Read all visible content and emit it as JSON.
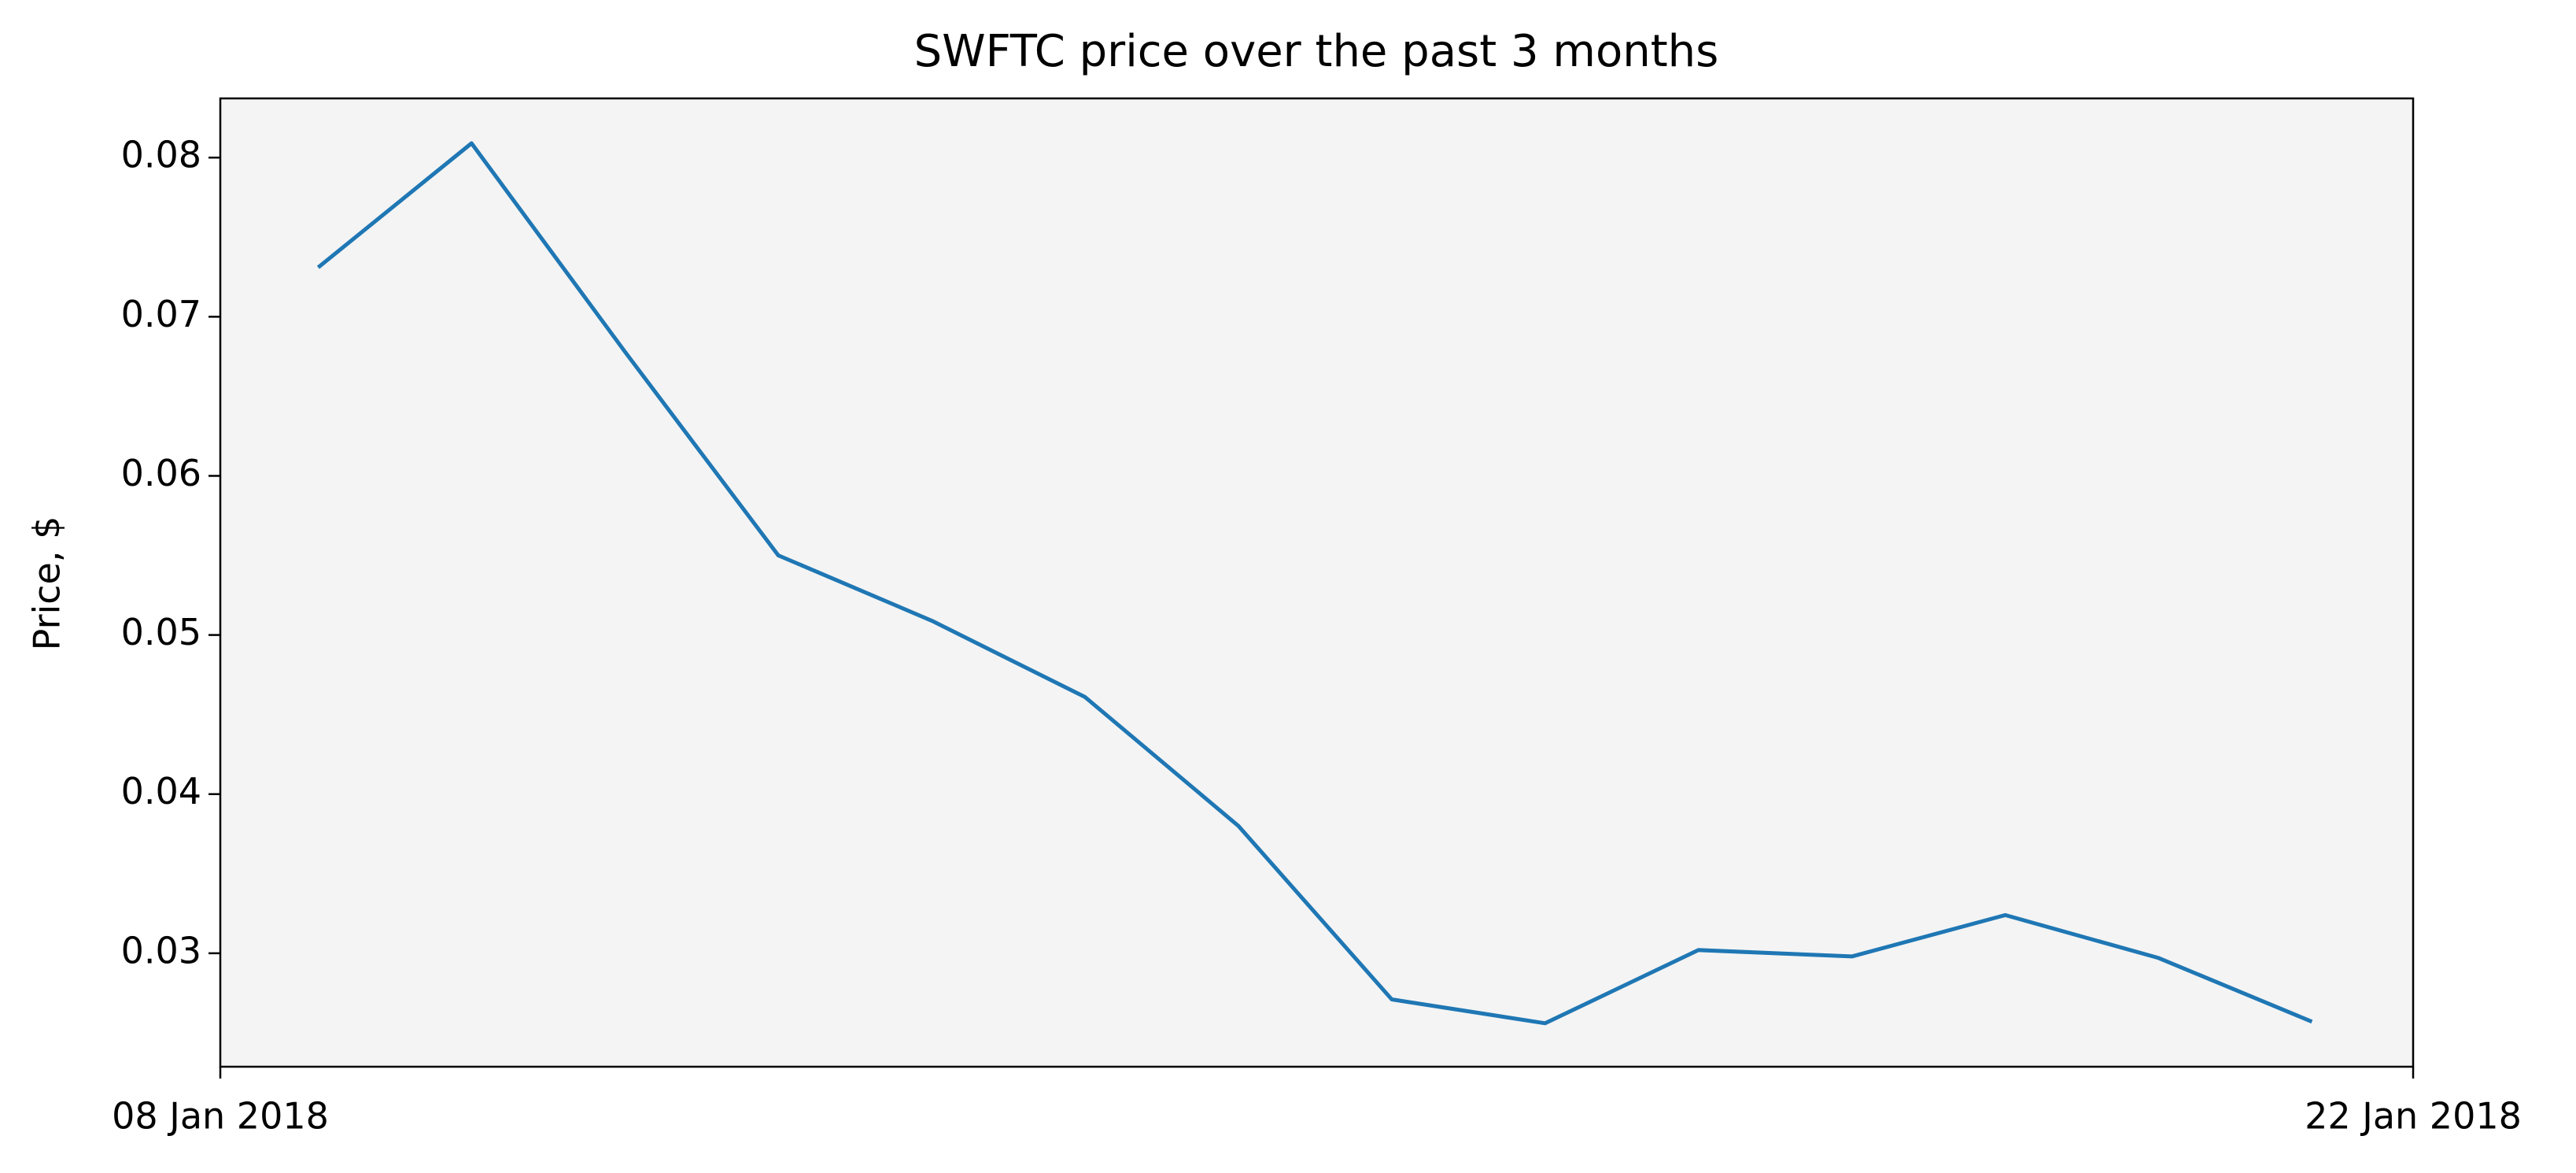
{
  "chart_data": {
    "type": "line",
    "title": "SWFTC price over the past 3 months",
    "ylabel": "Price, $",
    "x": [
      "2018-01-08T15:00",
      "2018-01-09T14:30",
      "2018-01-10T14:00",
      "2018-01-11T13:30",
      "2018-01-12T13:00",
      "2018-01-13T12:30",
      "2018-01-14T12:00",
      "2018-01-15T11:30",
      "2018-01-16T11:00",
      "2018-01-17T10:30",
      "2018-01-18T10:00",
      "2018-01-19T09:30",
      "2018-01-20T09:00",
      "2018-01-21T08:30"
    ],
    "series": [
      {
        "name": "SWFTC",
        "color": "#1f77b4",
        "values": [
          0.0731,
          0.0809,
          0.0678,
          0.055,
          0.0509,
          0.0461,
          0.038,
          0.0271,
          0.0256,
          0.0302,
          0.0298,
          0.0324,
          0.0297,
          0.0257
        ]
      }
    ],
    "xlim": [
      "2018-01-08T00:00",
      "2018-01-22T00:00"
    ],
    "xticks": [
      {
        "value": "2018-01-08T00:00",
        "label": "08 Jan 2018"
      },
      {
        "value": "2018-01-22T00:00",
        "label": "22 Jan 2018"
      }
    ],
    "ylim": [
      0.02287,
      0.08372
    ],
    "yticks": [
      0.03,
      0.04,
      0.05,
      0.06,
      0.07,
      0.08
    ],
    "background": "#f4f4f4"
  }
}
